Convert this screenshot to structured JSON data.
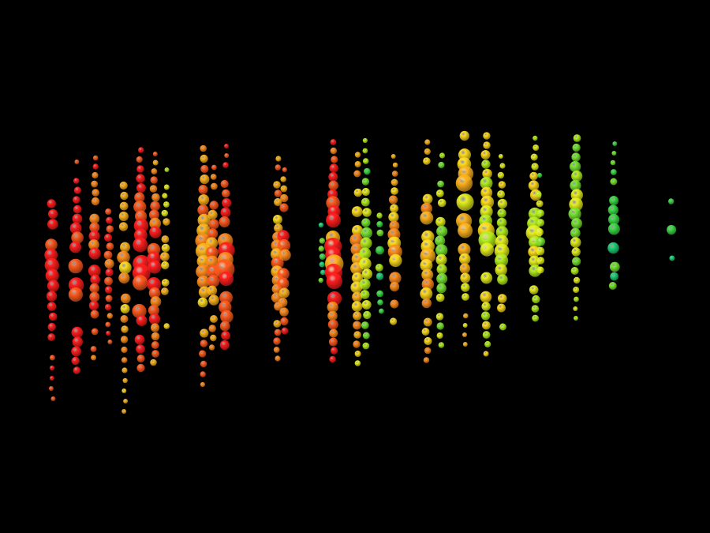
{
  "background_color": "#000000",
  "color_scale": [
    "#ff1e1e",
    "#ff5a1e",
    "#ff8c1e",
    "#ffb41e",
    "#ffdc1e",
    "#e6f01e",
    "#b4f01e",
    "#78e632",
    "#3cdc46",
    "#1ed278",
    "#1ec8b4",
    "#1eb4dc"
  ]
}
